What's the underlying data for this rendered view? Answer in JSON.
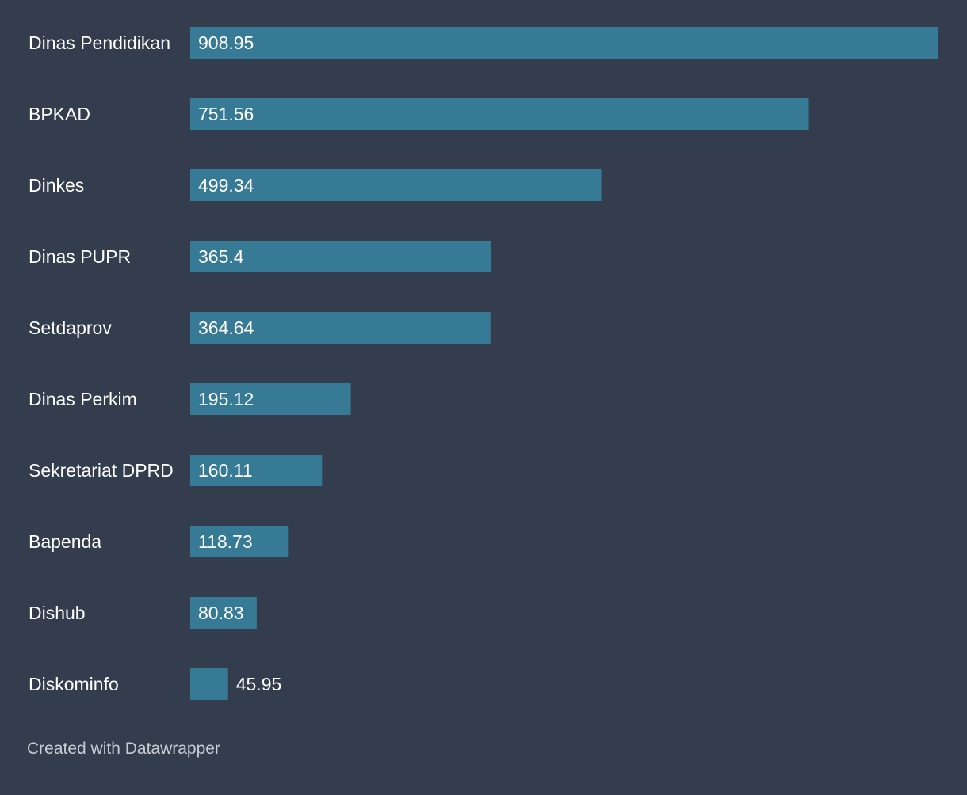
{
  "chart_data": {
    "type": "bar",
    "orientation": "horizontal",
    "categories": [
      "Dinas Pendidikan",
      "BPKAD",
      "Dinkes",
      "Dinas PUPR",
      "Setdaprov",
      "Dinas Perkim",
      "Sekretariat DPRD",
      "Bapenda",
      "Dishub",
      "Diskominfo"
    ],
    "values": [
      908.95,
      751.56,
      499.34,
      365.4,
      364.64,
      195.12,
      160.11,
      118.73,
      80.83,
      45.95
    ],
    "value_labels": [
      "908.95",
      "751.56",
      "499.34",
      "365.4",
      "364.64",
      "195.12",
      "160.11",
      "118.73",
      "80.83",
      "45.95"
    ],
    "xlim": [
      0,
      908.95
    ],
    "title": "",
    "xlabel": "",
    "ylabel": "",
    "grid": false
  },
  "colors": {
    "background": "#333d4d",
    "bar": "#377a96",
    "text": "#ffffff",
    "credit": "#c9ccd2"
  },
  "footer": {
    "credit": "Created with Datawrapper"
  }
}
